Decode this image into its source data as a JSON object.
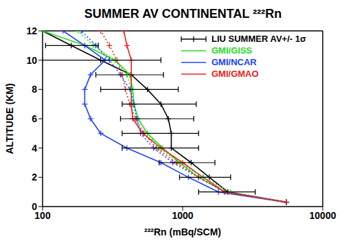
{
  "chart_data": {
    "type": "line",
    "title": "SUMMER AV CONTINENTAL ²²²Rn",
    "x_label": "²²²Rn (mBq/SCM)",
    "y_label": "ALTITUDE (KM)",
    "log": "x",
    "grid": false,
    "legend": "upper right",
    "xlim": [
      100,
      10000
    ],
    "xticks": [
      100,
      1000,
      10000
    ],
    "ylim": [
      0,
      12
    ],
    "yticks": [
      0,
      2,
      4,
      6,
      8,
      10,
      12
    ],
    "series": [
      {
        "name": "LIU SUMMER AV+/- 1σ",
        "color": "#000000",
        "line_style": "solid",
        "marker": "plus",
        "x": [
          5500,
          2100,
          1550,
          1150,
          830,
          830,
          790,
          700,
          560,
          430,
          260,
          160,
          100
        ],
        "y": [
          0.3,
          1,
          2,
          3,
          4,
          5,
          6,
          7,
          8,
          9,
          10,
          11,
          12
        ],
        "x_low": [
          null,
          1300,
          950,
          680,
          370,
          370,
          360,
          370,
          260,
          240,
          100,
          105,
          null
        ],
        "x_high": [
          null,
          3300,
          2200,
          1700,
          1300,
          1300,
          1200,
          1250,
          930,
          730,
          700,
          250,
          null
        ]
      },
      {
        "name": "GMI/GISS",
        "color": "#22dd22",
        "line_style": "solid",
        "marker": "plus",
        "x": [
          5500,
          2000,
          1300,
          950,
          720,
          560,
          480,
          450,
          440,
          420,
          330,
          200,
          100
        ],
        "y": [
          0.3,
          1,
          2,
          3,
          4,
          5,
          6,
          7,
          8,
          9,
          10,
          11,
          12
        ]
      },
      {
        "name": "GMI/NCAR",
        "color": "#2040ff",
        "line_style": "solid",
        "marker": "plus",
        "x": [
          5500,
          1800,
          1100,
          700,
          400,
          260,
          220,
          200,
          200,
          220,
          280,
          200,
          140
        ],
        "y": [
          0.3,
          1,
          2,
          3,
          4,
          5,
          6,
          7,
          8,
          9,
          10,
          11,
          12
        ]
      },
      {
        "name": "GMI/GMAO",
        "color": "#ee2020",
        "line_style": "solid",
        "marker": "plus",
        "x": [
          5500,
          2000,
          1400,
          1000,
          700,
          520,
          440,
          430,
          430,
          430,
          430,
          400,
          380
        ],
        "y": [
          0.3,
          1,
          2,
          3,
          4,
          5,
          6,
          7,
          8,
          9,
          10,
          11,
          12
        ]
      },
      {
        "color": "#22dd22",
        "line_style": "dotted",
        "marker": "plus",
        "x": [
          5500,
          2200,
          1400,
          950,
          680,
          560,
          480,
          440,
          430,
          400,
          330,
          230,
          180
        ],
        "y": [
          0.3,
          1,
          2,
          3,
          4,
          5,
          6,
          7,
          8,
          9,
          10,
          11,
          12
        ]
      },
      {
        "color": "#2040ff",
        "line_style": "dotted",
        "marker": "plus",
        "x": [
          5500,
          2000,
          1300,
          850,
          620,
          500,
          470,
          450,
          420,
          360,
          300,
          240,
          190
        ],
        "y": [
          0.3,
          1,
          2,
          3,
          4,
          5,
          6,
          7,
          8,
          9,
          10,
          11,
          12
        ]
      },
      {
        "color": "#ee2020",
        "line_style": "dotted",
        "marker": "plus",
        "x": [
          5500,
          2000,
          1300,
          900,
          650,
          530,
          460,
          420,
          390,
          370,
          340,
          300,
          260
        ],
        "y": [
          0.3,
          1,
          2,
          3,
          4,
          5,
          6,
          7,
          8,
          9,
          10,
          11,
          12
        ]
      }
    ]
  }
}
